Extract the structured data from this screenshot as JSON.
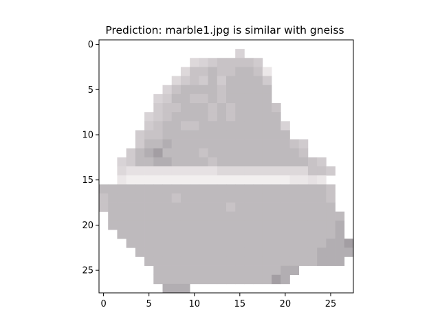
{
  "title": "Prediction: marble1.jpg is similar with gneiss",
  "image": {
    "rows": 28,
    "cols": 28,
    "background": "#ffffff",
    "pixels": [
      "............................",
      "...............6............",
      "..........56788887..........",
      ".........5889889983.........",
      "........57879799997.........",
      ".......689999899999.........",
      "......6799889899999.........",
      "......78899989899998........",
      ".....678999989899999........",
      ".....7899889999999996.......",
      "....78899999999999999.......",
      "....799A999999999999987.....",
      "...79AB9999899999999998.....",
      "..6799AA99998999999999987...",
      "..544444444445555555555887..",
      "..32222222222222222223343...",
      "99999999999999999999999998..",
      "89999999899999999999999998..",
      "89999999999999899999999999..",
      ".99999999999999999999999999.",
      ".9999999999999999999999999A.",
      "..999999999999999999999999A.",
      "...9999999999999999999999AAB",
      "....99999999999999999999AAAA",
      ".....9999999999999999999AAA.",
      "......99999999999999AA......",
      "......9999999999999BA.......",
      ".......AAA..................."
    ]
  },
  "axes": {
    "x_ticks": [
      "0",
      "5",
      "10",
      "15",
      "20",
      "25"
    ],
    "y_ticks": [
      "0",
      "5",
      "10",
      "15",
      "20",
      "25"
    ],
    "x_tick_values": [
      0,
      5,
      10,
      15,
      20,
      25
    ],
    "y_tick_values": [
      0,
      5,
      10,
      15,
      20,
      25
    ]
  }
}
